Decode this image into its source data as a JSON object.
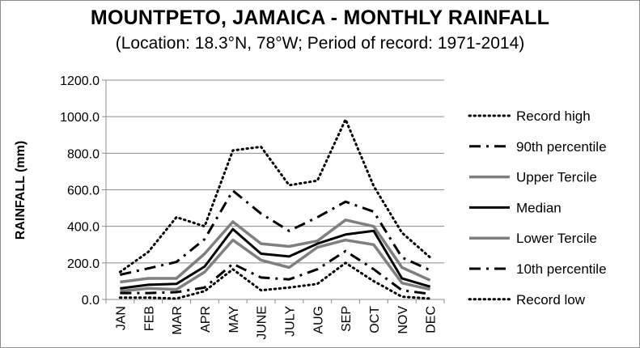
{
  "chart_data": {
    "type": "line",
    "title": "MOUNTPETO, JAMAICA - MONTHLY RAINFALL",
    "subtitle": "(Location: 18.3°N, 78°W; Period of record: 1971-2014)",
    "xlabel": "",
    "ylabel": "RAINFALL (mm)",
    "ylim": [
      0,
      1200
    ],
    "yticks": [
      "0.0",
      "200.0",
      "400.0",
      "600.0",
      "800.0",
      "1000.0",
      "1200.0"
    ],
    "grid": true,
    "legend_position": "right",
    "categories": [
      "JAN",
      "FEB",
      "MAR",
      "APR",
      "MAY",
      "JUNE",
      "JULY",
      "AUG",
      "SEP",
      "OCT",
      "NOV",
      "DEC"
    ],
    "series": [
      {
        "name": "Record high",
        "style": "dotted",
        "color": "#000000",
        "values": [
          150,
          260,
          450,
          400,
          815,
          835,
          625,
          650,
          985,
          620,
          365,
          230
        ]
      },
      {
        "name": "90th percentile",
        "style": "dashdot",
        "color": "#000000",
        "values": [
          135,
          170,
          205,
          330,
          595,
          470,
          375,
          450,
          535,
          480,
          230,
          160
        ]
      },
      {
        "name": "Upper Tercile",
        "style": "solid-gray",
        "color": "#7f7f7f",
        "values": [
          95,
          115,
          115,
          250,
          425,
          305,
          290,
          320,
          435,
          400,
          175,
          105
        ]
      },
      {
        "name": "Median",
        "style": "solid",
        "color": "#000000",
        "values": [
          60,
          80,
          85,
          180,
          385,
          250,
          235,
          305,
          355,
          375,
          115,
          70
        ]
      },
      {
        "name": "Lower Tercile",
        "style": "solid-gray",
        "color": "#7f7f7f",
        "values": [
          45,
          60,
          55,
          150,
          325,
          215,
          175,
          285,
          325,
          300,
          90,
          55
        ]
      },
      {
        "name": "10th percentile",
        "style": "dashdot",
        "color": "#000000",
        "values": [
          35,
          35,
          40,
          65,
          195,
          120,
          110,
          165,
          265,
          165,
          50,
          30
        ]
      },
      {
        "name": "Record low",
        "style": "dotted",
        "color": "#000000",
        "values": [
          10,
          10,
          5,
          45,
          165,
          50,
          65,
          85,
          200,
          100,
          15,
          5
        ]
      }
    ]
  }
}
